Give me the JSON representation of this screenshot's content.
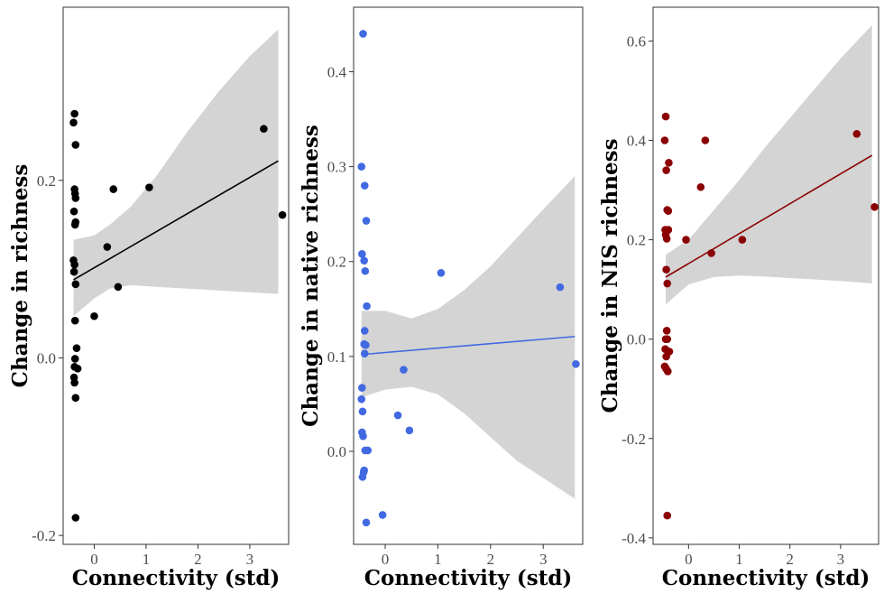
{
  "chart_data": [
    {
      "type": "scatter",
      "xlabel": "Connectivity (std)",
      "ylabel": "Change in richness",
      "xlim": [
        -0.6,
        3.75
      ],
      "ylim": [
        -0.21,
        0.395
      ],
      "xticks": [
        0,
        1,
        2,
        3
      ],
      "yticks": [
        -0.2,
        0.0,
        0.2
      ],
      "ytick_labels": [
        "-0.2",
        "0.0",
        "0.2"
      ],
      "grid": false,
      "point_color": "#000000",
      "line_color": "#000000",
      "points": [
        [
          -0.38,
          0.275
        ],
        [
          -0.4,
          0.265
        ],
        [
          -0.36,
          0.24
        ],
        [
          -0.38,
          0.19
        ],
        [
          -0.37,
          0.185
        ],
        [
          -0.36,
          0.18
        ],
        [
          -0.39,
          0.165
        ],
        [
          -0.36,
          0.153
        ],
        [
          -0.37,
          0.15
        ],
        [
          -0.4,
          0.11
        ],
        [
          -0.38,
          0.105
        ],
        [
          -0.39,
          0.097
        ],
        [
          -0.36,
          0.083
        ],
        [
          -0.37,
          0.042
        ],
        [
          -0.34,
          0.011
        ],
        [
          -0.37,
          -0.001
        ],
        [
          -0.38,
          -0.01
        ],
        [
          -0.32,
          -0.012
        ],
        [
          -0.39,
          -0.022
        ],
        [
          -0.38,
          -0.028
        ],
        [
          -0.36,
          -0.045
        ],
        [
          -0.36,
          -0.18
        ],
        [
          0.0,
          0.047
        ],
        [
          0.25,
          0.125
        ],
        [
          0.37,
          0.19
        ],
        [
          0.46,
          0.08
        ],
        [
          1.06,
          0.192
        ],
        [
          3.27,
          0.258
        ],
        [
          3.63,
          0.161
        ]
      ],
      "fit": [
        [
          -0.4,
          0.088
        ],
        [
          3.55,
          0.222
        ]
      ],
      "ci_upper": [
        [
          -0.4,
          0.133
        ],
        [
          0.0,
          0.138
        ],
        [
          0.3,
          0.15
        ],
        [
          0.7,
          0.17
        ],
        [
          1.2,
          0.205
        ],
        [
          1.8,
          0.255
        ],
        [
          2.4,
          0.3
        ],
        [
          3.0,
          0.34
        ],
        [
          3.55,
          0.37
        ]
      ],
      "ci_lower": [
        [
          -0.4,
          0.047
        ],
        [
          0.0,
          0.067
        ],
        [
          0.3,
          0.078
        ],
        [
          0.7,
          0.082
        ],
        [
          1.2,
          0.08
        ],
        [
          1.8,
          0.078
        ],
        [
          2.4,
          0.076
        ],
        [
          3.0,
          0.074
        ],
        [
          3.55,
          0.072
        ]
      ]
    },
    {
      "type": "scatter",
      "xlabel": "Connectivity (std)",
      "ylabel": "Change in native richness",
      "xlim": [
        -0.6,
        3.75
      ],
      "ylim": [
        -0.098,
        0.468
      ],
      "xticks": [
        0,
        1,
        2,
        3
      ],
      "yticks": [
        0.0,
        0.1,
        0.2,
        0.3,
        0.4
      ],
      "ytick_labels": [
        "0.0",
        "0.1",
        "0.2",
        "0.3",
        "0.4"
      ],
      "grid": false,
      "point_color": "#4169e1",
      "line_color": "#4169e1",
      "points": [
        [
          -0.42,
          0.44
        ],
        [
          -0.45,
          0.3
        ],
        [
          -0.39,
          0.28
        ],
        [
          -0.36,
          0.243
        ],
        [
          -0.44,
          0.208
        ],
        [
          -0.4,
          0.201
        ],
        [
          -0.38,
          0.19
        ],
        [
          -0.35,
          0.153
        ],
        [
          -0.39,
          0.127
        ],
        [
          -0.4,
          0.113
        ],
        [
          -0.37,
          0.112
        ],
        [
          -0.39,
          0.103
        ],
        [
          -0.44,
          0.067
        ],
        [
          -0.45,
          0.055
        ],
        [
          -0.43,
          0.042
        ],
        [
          -0.44,
          0.02
        ],
        [
          -0.42,
          0.016
        ],
        [
          -0.38,
          0.001
        ],
        [
          -0.33,
          0.001
        ],
        [
          -0.4,
          -0.02
        ],
        [
          -0.41,
          -0.022
        ],
        [
          -0.43,
          -0.027
        ],
        [
          -0.36,
          -0.075
        ],
        [
          -0.05,
          -0.067
        ],
        [
          0.24,
          0.038
        ],
        [
          0.35,
          0.086
        ],
        [
          0.46,
          0.022
        ],
        [
          1.06,
          0.188
        ],
        [
          3.32,
          0.173
        ],
        [
          3.62,
          0.092
        ]
      ],
      "fit": [
        [
          -0.45,
          0.102
        ],
        [
          3.6,
          0.121
        ]
      ],
      "ci_upper": [
        [
          -0.45,
          0.148
        ],
        [
          0.0,
          0.148
        ],
        [
          0.5,
          0.14
        ],
        [
          1.0,
          0.15
        ],
        [
          1.5,
          0.17
        ],
        [
          2.0,
          0.195
        ],
        [
          2.5,
          0.225
        ],
        [
          3.0,
          0.255
        ],
        [
          3.6,
          0.29
        ]
      ],
      "ci_lower": [
        [
          -0.45,
          0.057
        ],
        [
          0.0,
          0.065
        ],
        [
          0.5,
          0.068
        ],
        [
          1.0,
          0.06
        ],
        [
          1.5,
          0.04
        ],
        [
          2.0,
          0.015
        ],
        [
          2.5,
          -0.01
        ],
        [
          3.0,
          -0.028
        ],
        [
          3.6,
          -0.05
        ]
      ]
    },
    {
      "type": "scatter",
      "xlabel": "Connectivity (std)",
      "ylabel": "Change in NIS richness",
      "xlim": [
        -0.7,
        3.75
      ],
      "ylim": [
        -0.413,
        0.668
      ],
      "xticks": [
        0,
        1,
        2,
        3
      ],
      "yticks": [
        -0.4,
        -0.2,
        0.0,
        0.2,
        0.4,
        0.6
      ],
      "ytick_labels": [
        "-0.4",
        "-0.2",
        "0.0",
        "0.2",
        "0.4",
        "0.6"
      ],
      "grid": false,
      "point_color": "#8b0000",
      "line_color": "#8b0000",
      "points": [
        [
          -0.45,
          0.448
        ],
        [
          -0.47,
          0.4
        ],
        [
          -0.39,
          0.355
        ],
        [
          -0.44,
          0.34
        ],
        [
          -0.42,
          0.26
        ],
        [
          -0.4,
          0.258
        ],
        [
          -0.4,
          0.22
        ],
        [
          -0.46,
          0.22
        ],
        [
          -0.45,
          0.21
        ],
        [
          -0.43,
          0.202
        ],
        [
          -0.44,
          0.14
        ],
        [
          -0.42,
          0.112
        ],
        [
          -0.43,
          0.017
        ],
        [
          -0.45,
          0.0
        ],
        [
          -0.42,
          0.0
        ],
        [
          -0.46,
          -0.02
        ],
        [
          -0.38,
          -0.025
        ],
        [
          -0.44,
          -0.035
        ],
        [
          -0.47,
          -0.055
        ],
        [
          -0.44,
          -0.06
        ],
        [
          -0.41,
          -0.065
        ],
        [
          -0.42,
          -0.355
        ],
        [
          -0.05,
          0.2
        ],
        [
          0.24,
          0.306
        ],
        [
          0.33,
          0.4
        ],
        [
          0.45,
          0.173
        ],
        [
          1.06,
          0.2
        ],
        [
          3.32,
          0.413
        ],
        [
          3.67,
          0.266
        ]
      ],
      "fit": [
        [
          -0.45,
          0.125
        ],
        [
          3.62,
          0.37
        ]
      ],
      "ci_upper": [
        [
          -0.45,
          0.17
        ],
        [
          0.0,
          0.2
        ],
        [
          0.5,
          0.26
        ],
        [
          1.0,
          0.32
        ],
        [
          1.5,
          0.385
        ],
        [
          2.0,
          0.445
        ],
        [
          2.5,
          0.505
        ],
        [
          3.0,
          0.565
        ],
        [
          3.62,
          0.632
        ]
      ],
      "ci_lower": [
        [
          -0.45,
          0.07
        ],
        [
          0.0,
          0.11
        ],
        [
          0.5,
          0.125
        ],
        [
          1.0,
          0.128
        ],
        [
          1.5,
          0.126
        ],
        [
          2.0,
          0.123
        ],
        [
          2.5,
          0.12
        ],
        [
          3.0,
          0.117
        ],
        [
          3.62,
          0.112
        ]
      ]
    }
  ]
}
